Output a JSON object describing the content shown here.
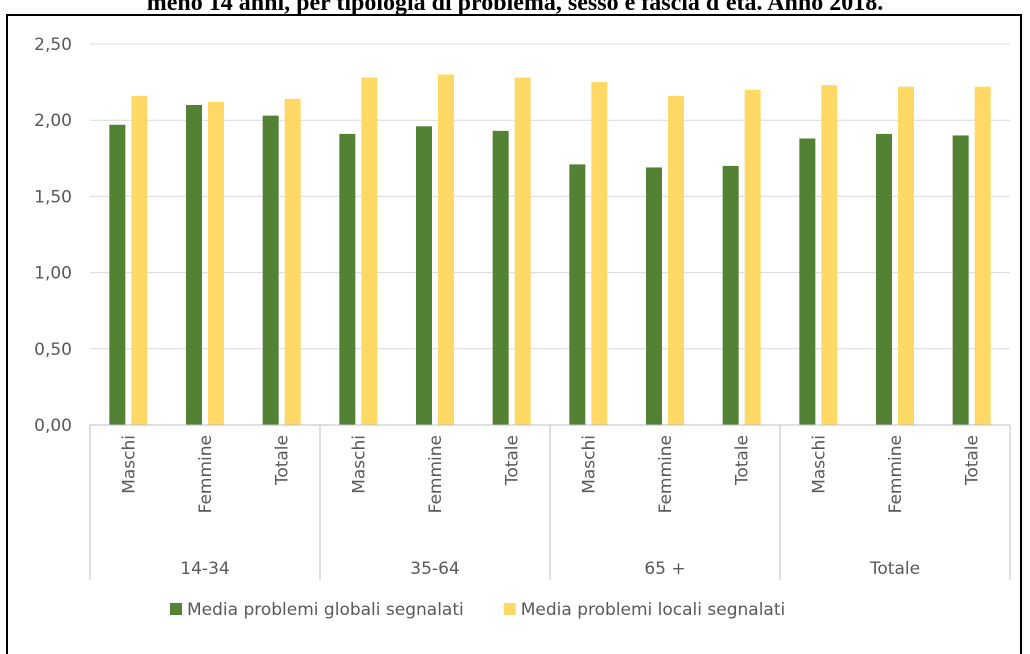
{
  "title": "meno 14 anni, per tipologia di problema, sesso e fascia d'età. Anno 2018.",
  "chart_data": {
    "type": "bar",
    "ylim": [
      0,
      2.5
    ],
    "yticks": [
      "0,00",
      "0,50",
      "1,00",
      "1,50",
      "2,00",
      "2,50"
    ],
    "grid": true,
    "legend_position": "bottom",
    "groups": [
      {
        "label": "14-34",
        "categories": [
          "Maschi",
          "Femmine",
          "Totale"
        ]
      },
      {
        "label": "35-64",
        "categories": [
          "Maschi",
          "Femmine",
          "Totale"
        ]
      },
      {
        "label": "65 +",
        "categories": [
          "Maschi",
          "Femmine",
          "Totale"
        ]
      },
      {
        "label": "Totale",
        "categories": [
          "Maschi",
          "Femmine",
          "Totale"
        ]
      }
    ],
    "series": [
      {
        "name": "Media problemi globali segnalati",
        "color": "#548235",
        "values": [
          1.97,
          2.1,
          2.03,
          1.91,
          1.96,
          1.93,
          1.71,
          1.69,
          1.7,
          1.88,
          1.91,
          1.9
        ]
      },
      {
        "name": "Media problemi locali segnalati",
        "color": "#FFD966",
        "values": [
          2.16,
          2.12,
          2.14,
          2.28,
          2.3,
          2.28,
          2.25,
          2.16,
          2.2,
          2.23,
          2.22,
          2.22
        ]
      }
    ]
  }
}
